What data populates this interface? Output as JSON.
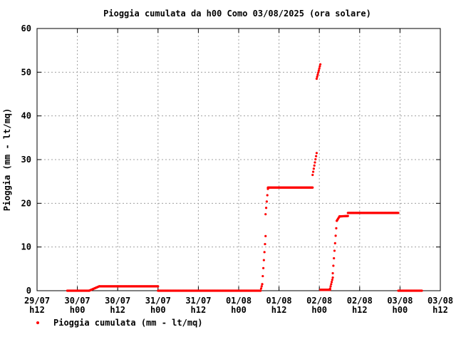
{
  "colors": {
    "series": "#ff0000",
    "grid": "#a0a0a0",
    "axis": "#000000",
    "background": "#ffffff"
  },
  "chart_data": {
    "type": "scatter",
    "title": "Pioggia cumulata da h00 Como 03/08/2025 (ora solare)",
    "xlabel": "",
    "ylabel": "Pioggia (mm - lt/mq)",
    "x_unit": "hours",
    "xlim": [
      0,
      120
    ],
    "ylim": [
      0,
      60
    ],
    "grid": true,
    "legend_position": "bottom-left",
    "x_ticks": [
      {
        "x": 0,
        "line1": "29/07",
        "line2": "h12"
      },
      {
        "x": 12,
        "line1": "30/07",
        "line2": "h00"
      },
      {
        "x": 24,
        "line1": "30/07",
        "line2": "h12"
      },
      {
        "x": 36,
        "line1": "31/07",
        "line2": "h00"
      },
      {
        "x": 48,
        "line1": "31/07",
        "line2": "h12"
      },
      {
        "x": 60,
        "line1": "01/08",
        "line2": "h00"
      },
      {
        "x": 72,
        "line1": "01/08",
        "line2": "h12"
      },
      {
        "x": 84,
        "line1": "02/08",
        "line2": "h00"
      },
      {
        "x": 96,
        "line1": "02/08",
        "line2": "h12"
      },
      {
        "x": 108,
        "line1": "03/08",
        "line2": "h00"
      },
      {
        "x": 120,
        "line1": "03/08",
        "line2": "h12"
      }
    ],
    "y_ticks": [
      "0",
      "10",
      "20",
      "30",
      "40",
      "50",
      "60"
    ],
    "series": [
      {
        "name": "Pioggia cumulata (mm - lt/mq)",
        "color": "#ff0000",
        "segments": [
          {
            "x": [
              9,
              15.5
            ],
            "y": [
              0,
              0
            ]
          },
          {
            "x": [
              15.5,
              18.5
            ],
            "y": [
              0,
              1
            ]
          },
          {
            "x": [
              18.5,
              36
            ],
            "y": [
              1,
              1
            ]
          },
          {
            "x": [
              36,
              66.5
            ],
            "y": [
              0,
              0
            ]
          },
          {
            "x": [
              66.5,
              67
            ],
            "y": [
              0,
              1.5
            ]
          },
          {
            "x": [
              67,
              68
            ],
            "y": [
              1.5,
              12.5
            ]
          },
          {
            "x": [
              68,
              68.7
            ],
            "y": [
              17.5,
              23.3
            ]
          },
          {
            "x": [
              68.7,
              82
            ],
            "y": [
              23.6,
              23.6
            ]
          },
          {
            "x": [
              82,
              83.2
            ],
            "y": [
              26.5,
              31.5
            ]
          },
          {
            "x": [
              83.2,
              84.3
            ],
            "y": [
              48.5,
              51.8
            ]
          },
          {
            "x": [
              84.3,
              87.2
            ],
            "y": [
              0.2,
              0.2
            ]
          },
          {
            "x": [
              87.2,
              88
            ],
            "y": [
              0.5,
              3
            ]
          },
          {
            "x": [
              88,
              89.2
            ],
            "y": [
              4,
              16
            ]
          },
          {
            "x": [
              89.2,
              90
            ],
            "y": [
              16,
              17
            ]
          },
          {
            "x": [
              90,
              92.5
            ],
            "y": [
              17,
              17.1
            ]
          },
          {
            "x": [
              92.5,
              107.5
            ],
            "y": [
              17.8,
              17.8
            ]
          },
          {
            "x": [
              107.5,
              114.5
            ],
            "y": [
              0,
              0
            ]
          }
        ]
      }
    ]
  }
}
